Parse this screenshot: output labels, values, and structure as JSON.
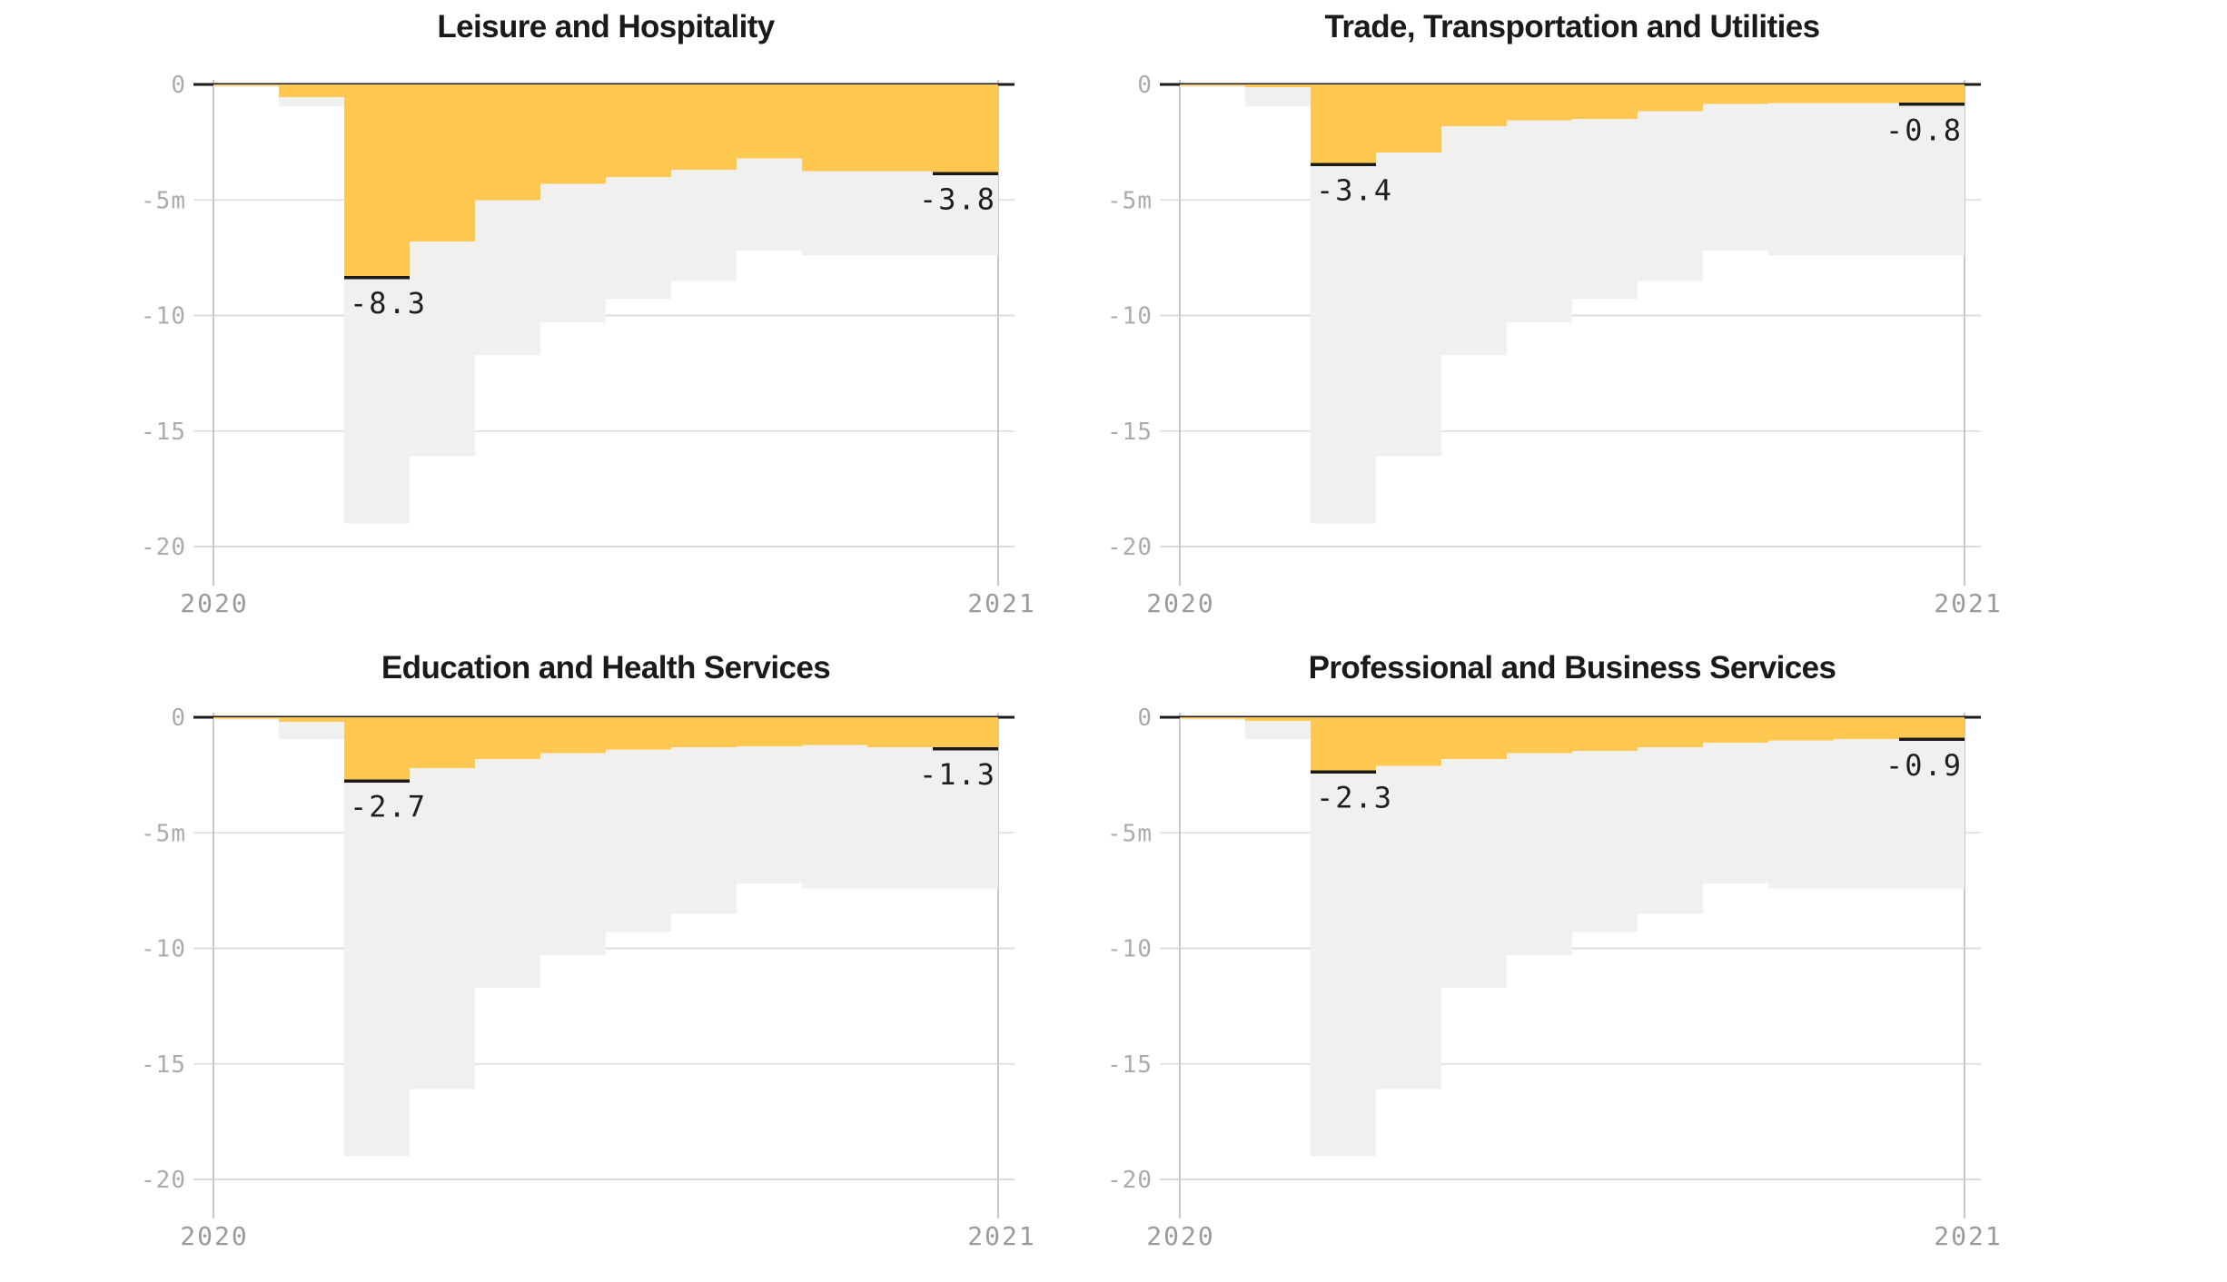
{
  "page": {
    "background": "#ffffff"
  },
  "colors": {
    "sector_area": "#FFC850",
    "reference_area": "#F0F0EF",
    "gridline": "#DCDCDC",
    "year_gridline": "#C9C9C9",
    "zero_axis_line": "#1A1A1A",
    "annotation_line": "#1A1A1A",
    "annotation_text": "#1F1F1F",
    "y_tick_text": "#ABABAB",
    "x_tick_text": "#9A9A9A",
    "title_text": "#1A1A1A"
  },
  "axes": {
    "y_ticks": [
      {
        "label": "0",
        "value": 0
      },
      {
        "label": "-5m",
        "value": -5
      },
      {
        "label": "-10",
        "value": -10
      },
      {
        "label": "-15",
        "value": -15
      },
      {
        "label": "-20",
        "value": -20
      }
    ],
    "x_ticks": [
      {
        "label": "2020",
        "position": "start"
      },
      {
        "label": "2021",
        "position": "end"
      }
    ],
    "ylim": [
      -20,
      0
    ]
  },
  "chart_data": [
    {
      "type": "area",
      "title": "Leisure and Hospitality",
      "x_steps": [
        "Feb 2020",
        "Mar 2020",
        "Apr 2020",
        "May 2020",
        "Jun 2020",
        "Jul 2020",
        "Aug 2020",
        "Sep 2020",
        "Oct 2020",
        "Nov 2020",
        "Dec 2020",
        "Jan 2021"
      ],
      "x_tick_labels": [
        "2020",
        "2021"
      ],
      "y_tick_labels": [
        "0",
        "-5m",
        "-10",
        "-15",
        "-20"
      ],
      "ylim": [
        -20,
        0
      ],
      "grid": true,
      "series": [
        {
          "name": "all-sectors-background (gray area)",
          "color": "#F0F0EF",
          "values": [
            -0.12,
            -0.95,
            -19.0,
            -16.1,
            -11.7,
            -10.3,
            -9.3,
            -8.5,
            -7.2,
            -7.4,
            -7.4,
            -7.4
          ]
        },
        {
          "name": "Leisure and Hospitality (yellow area)",
          "color": "#FFC850",
          "values": [
            -0.06,
            -0.55,
            -8.3,
            -6.8,
            -5.0,
            -4.3,
            -4.0,
            -3.7,
            -3.2,
            -3.75,
            -3.75,
            -3.8
          ]
        }
      ],
      "annotations": [
        {
          "label": "-8.3",
          "month": "Apr 2020",
          "value": -8.3,
          "align": "left"
        },
        {
          "label": "-3.8",
          "month": "Jan 2021",
          "value": -3.8,
          "align": "right"
        }
      ]
    },
    {
      "type": "area",
      "title": "Trade, Transportation and Utilities",
      "x_steps": [
        "Feb 2020",
        "Mar 2020",
        "Apr 2020",
        "May 2020",
        "Jun 2020",
        "Jul 2020",
        "Aug 2020",
        "Sep 2020",
        "Oct 2020",
        "Nov 2020",
        "Dec 2020",
        "Jan 2021"
      ],
      "x_tick_labels": [
        "2020",
        "2021"
      ],
      "y_tick_labels": [
        "0",
        "-5m",
        "-10",
        "-15",
        "-20"
      ],
      "ylim": [
        -20,
        0
      ],
      "grid": true,
      "series": [
        {
          "name": "all-sectors-background (gray area)",
          "color": "#F0F0EF",
          "values": [
            -0.12,
            -0.95,
            -19.0,
            -16.1,
            -11.7,
            -10.3,
            -9.3,
            -8.5,
            -7.2,
            -7.4,
            -7.4,
            -7.4
          ]
        },
        {
          "name": "Trade, Transportation and Utilities (yellow area)",
          "color": "#FFC850",
          "values": [
            -0.05,
            -0.12,
            -3.4,
            -2.95,
            -1.8,
            -1.55,
            -1.5,
            -1.15,
            -0.85,
            -0.8,
            -0.8,
            -0.8
          ]
        }
      ],
      "annotations": [
        {
          "label": "-3.4",
          "month": "Apr 2020",
          "value": -3.4,
          "align": "left"
        },
        {
          "label": "-0.8",
          "month": "Jan 2021",
          "value": -0.8,
          "align": "right"
        }
      ]
    },
    {
      "type": "area",
      "title": "Education and Health Services",
      "x_steps": [
        "Feb 2020",
        "Mar 2020",
        "Apr 2020",
        "May 2020",
        "Jun 2020",
        "Jul 2020",
        "Aug 2020",
        "Sep 2020",
        "Oct 2020",
        "Nov 2020",
        "Dec 2020",
        "Jan 2021"
      ],
      "x_tick_labels": [
        "2020",
        "2021"
      ],
      "y_tick_labels": [
        "0",
        "-5m",
        "-10",
        "-15",
        "-20"
      ],
      "ylim": [
        -20,
        0
      ],
      "grid": true,
      "series": [
        {
          "name": "all-sectors-background (gray area)",
          "color": "#F0F0EF",
          "values": [
            -0.12,
            -0.95,
            -19.0,
            -16.1,
            -11.7,
            -10.3,
            -9.3,
            -8.5,
            -7.2,
            -7.4,
            -7.4,
            -7.4
          ]
        },
        {
          "name": "Education and Health Services (yellow area)",
          "color": "#FFC850",
          "values": [
            -0.05,
            -0.2,
            -2.7,
            -2.2,
            -1.8,
            -1.55,
            -1.4,
            -1.3,
            -1.25,
            -1.2,
            -1.3,
            -1.3
          ]
        }
      ],
      "annotations": [
        {
          "label": "-2.7",
          "month": "Apr 2020",
          "value": -2.7,
          "align": "left"
        },
        {
          "label": "-1.3",
          "month": "Jan 2021",
          "value": -1.3,
          "align": "right"
        }
      ]
    },
    {
      "type": "area",
      "title": "Professional and Business Services",
      "x_steps": [
        "Feb 2020",
        "Mar 2020",
        "Apr 2020",
        "May 2020",
        "Jun 2020",
        "Jul 2020",
        "Aug 2020",
        "Sep 2020",
        "Oct 2020",
        "Nov 2020",
        "Dec 2020",
        "Jan 2021"
      ],
      "x_tick_labels": [
        "2020",
        "2021"
      ],
      "y_tick_labels": [
        "0",
        "-5m",
        "-10",
        "-15",
        "-20"
      ],
      "ylim": [
        -20,
        0
      ],
      "grid": true,
      "series": [
        {
          "name": "all-sectors-background (gray area)",
          "color": "#F0F0EF",
          "values": [
            -0.12,
            -0.95,
            -19.0,
            -16.1,
            -11.7,
            -10.3,
            -9.3,
            -8.5,
            -7.2,
            -7.4,
            -7.4,
            -7.4
          ]
        },
        {
          "name": "Professional and Business Services (yellow area)",
          "color": "#FFC850",
          "values": [
            -0.05,
            -0.15,
            -2.3,
            -2.1,
            -1.8,
            -1.55,
            -1.45,
            -1.3,
            -1.1,
            -1.0,
            -0.95,
            -0.9
          ]
        }
      ],
      "annotations": [
        {
          "label": "-2.3",
          "month": "Apr 2020",
          "value": -2.3,
          "align": "left"
        },
        {
          "label": "-0.9",
          "month": "Jan 2021",
          "value": -0.9,
          "align": "right"
        }
      ]
    }
  ]
}
